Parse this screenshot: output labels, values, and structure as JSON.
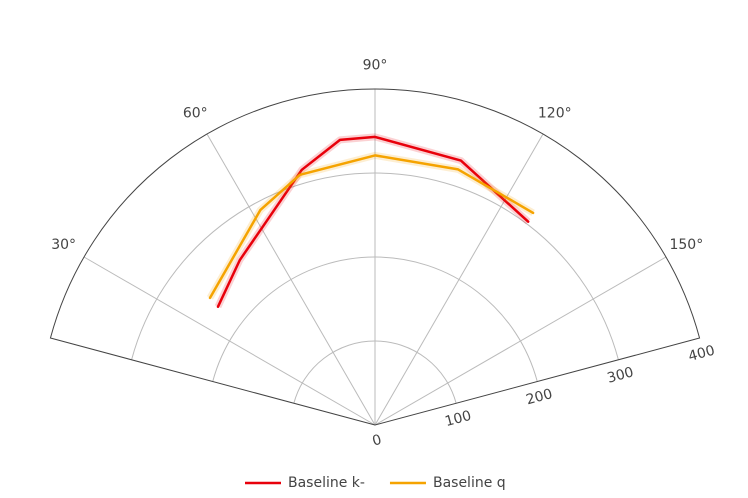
{
  "chart_data": {
    "type": "polar",
    "thetalim": [
      15,
      165
    ],
    "thetaticks": [
      {
        "value": 30,
        "label": "30°"
      },
      {
        "value": 60,
        "label": "60°"
      },
      {
        "value": 90,
        "label": "90°"
      },
      {
        "value": 120,
        "label": "120°"
      },
      {
        "value": 150,
        "label": "150°"
      }
    ],
    "rlim": [
      0,
      400
    ],
    "rticks": [
      0,
      100,
      200,
      300,
      400
    ],
    "grid": true,
    "legend": "bottom",
    "series": [
      {
        "name": "Baseline k-",
        "color": "#e8000b",
        "theta": [
          37,
          50.7,
          59.5,
          74,
          83,
          90,
          108,
          127
        ],
        "r": [
          234,
          254,
          269,
          316,
          342,
          343,
          331,
          303
        ]
      },
      {
        "name": "Baseline q",
        "color": "#f5a300",
        "theta": [
          37.6,
          61.9,
          73.3,
          90,
          108,
          126.7
        ],
        "r": [
          248,
          290,
          311,
          321,
          320,
          315
        ]
      }
    ]
  }
}
